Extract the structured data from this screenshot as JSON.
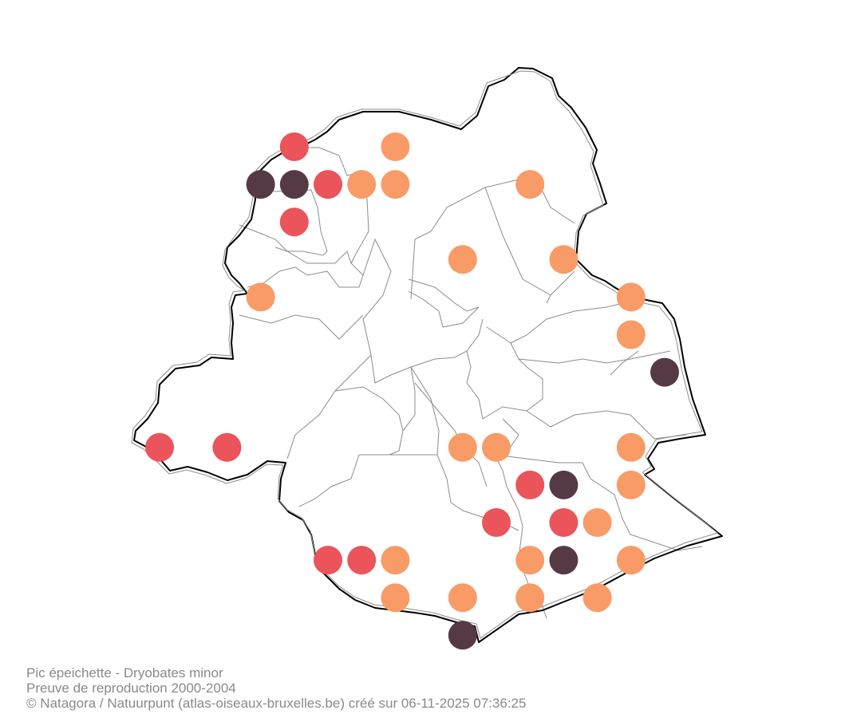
{
  "caption": {
    "species": "Pic épeichette - Dryobates minor",
    "period": "Preuve de reproduction 2000-2004",
    "credits": "© Natagora / Natuurpunt (atlas-oiseaux-bruxelles.be) créé sur 06-11-2025 07:36:25"
  },
  "colors": {
    "orange": "#f99b66",
    "red": "#ea545a",
    "dark": "#553a45",
    "outline": "#000000",
    "commune_border": "#8c8c8c"
  },
  "markers": [
    {
      "grid": [
        8,
        0
      ],
      "color": "red"
    },
    {
      "grid": [
        11,
        0
      ],
      "color": "orange"
    },
    {
      "grid": [
        7,
        1
      ],
      "color": "dark"
    },
    {
      "grid": [
        8,
        1
      ],
      "color": "dark"
    },
    {
      "grid": [
        9,
        1
      ],
      "color": "red"
    },
    {
      "grid": [
        10,
        1
      ],
      "color": "orange"
    },
    {
      "grid": [
        11,
        1
      ],
      "color": "orange"
    },
    {
      "grid": [
        15,
        1
      ],
      "color": "orange"
    },
    {
      "grid": [
        8,
        2
      ],
      "color": "red"
    },
    {
      "grid": [
        13,
        3
      ],
      "color": "orange"
    },
    {
      "grid": [
        16,
        3
      ],
      "color": "orange"
    },
    {
      "grid": [
        7,
        4
      ],
      "color": "orange"
    },
    {
      "grid": [
        18,
        4
      ],
      "color": "orange"
    },
    {
      "grid": [
        18,
        5
      ],
      "color": "orange"
    },
    {
      "grid": [
        19,
        6
      ],
      "color": "dark"
    },
    {
      "grid": [
        4,
        8
      ],
      "color": "red"
    },
    {
      "grid": [
        6,
        8
      ],
      "color": "red"
    },
    {
      "grid": [
        13,
        8
      ],
      "color": "orange"
    },
    {
      "grid": [
        14,
        8
      ],
      "color": "orange"
    },
    {
      "grid": [
        18,
        8
      ],
      "color": "orange"
    },
    {
      "grid": [
        15,
        9
      ],
      "color": "red"
    },
    {
      "grid": [
        16,
        9
      ],
      "color": "dark"
    },
    {
      "grid": [
        18,
        9
      ],
      "color": "orange"
    },
    {
      "grid": [
        14,
        10
      ],
      "color": "red"
    },
    {
      "grid": [
        16,
        10
      ],
      "color": "red"
    },
    {
      "grid": [
        17,
        10
      ],
      "color": "orange"
    },
    {
      "grid": [
        9,
        11
      ],
      "color": "red"
    },
    {
      "grid": [
        10,
        11
      ],
      "color": "red"
    },
    {
      "grid": [
        11,
        11
      ],
      "color": "orange"
    },
    {
      "grid": [
        15,
        11
      ],
      "color": "orange"
    },
    {
      "grid": [
        16,
        11
      ],
      "color": "dark"
    },
    {
      "grid": [
        18,
        11
      ],
      "color": "orange"
    },
    {
      "grid": [
        11,
        12
      ],
      "color": "orange"
    },
    {
      "grid": [
        13,
        12
      ],
      "color": "orange"
    },
    {
      "grid": [
        15,
        12
      ],
      "color": "orange"
    },
    {
      "grid": [
        17,
        12
      ],
      "color": "orange"
    },
    {
      "grid": [
        13,
        13
      ],
      "color": "dark"
    }
  ]
}
